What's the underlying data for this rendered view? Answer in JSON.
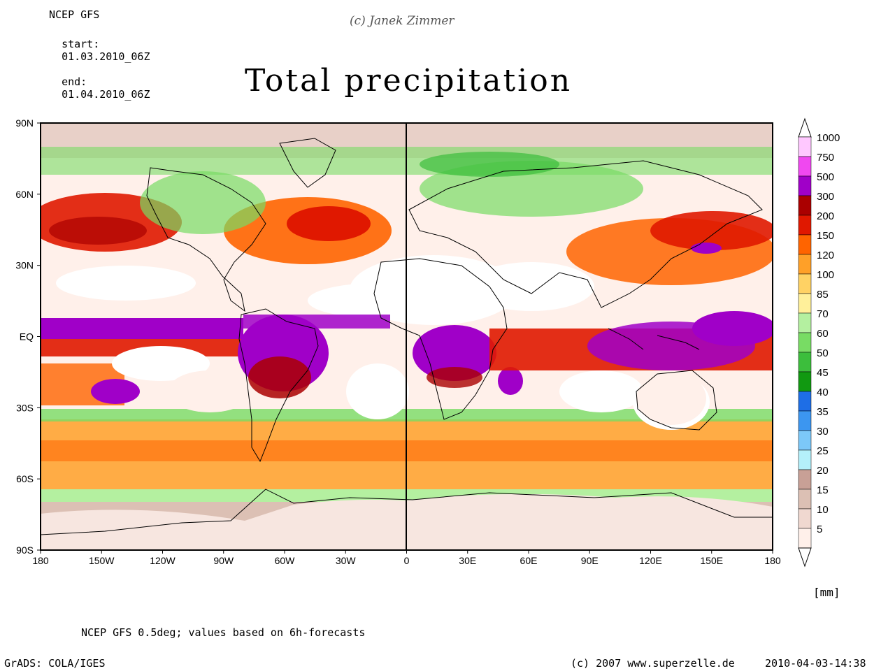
{
  "header": {
    "source": "NCEP GFS",
    "start_label": "start:",
    "start": "01.03.2010_06Z",
    "end_label": "end:",
    "end": "01.04.2010_06Z",
    "copyright_top": "(c) Janek Zimmer"
  },
  "title": "Total precipitation",
  "map": {
    "lat_labels": [
      "90N",
      "60N",
      "30N",
      "EQ",
      "30S",
      "60S",
      "90S"
    ],
    "lon_labels": [
      "180",
      "150W",
      "120W",
      "90W",
      "60W",
      "30W",
      "0",
      "30E",
      "60E",
      "90E",
      "120E",
      "150E",
      "180"
    ]
  },
  "legend": {
    "unit": "[mm]",
    "levels": [
      "1000",
      "750",
      "500",
      "300",
      "200",
      "150",
      "120",
      "100",
      "85",
      "70",
      "60",
      "50",
      "45",
      "40",
      "35",
      "30",
      "25",
      "20",
      "15",
      "10",
      "5"
    ],
    "colors": [
      "#ffc8ff",
      "#f048f0",
      "#a000c8",
      "#aa0000",
      "#e01800",
      "#ff6400",
      "#ffa028",
      "#ffd264",
      "#fff09a",
      "#b4f0a0",
      "#78dc64",
      "#3cbe3c",
      "#119911",
      "#1e6ee6",
      "#3c96f0",
      "#7cc8f8",
      "#b4f0fa",
      "#c8a096",
      "#dcc0b4",
      "#f0d8d0",
      "#fff0ea"
    ]
  },
  "footer": {
    "note": "NCEP GFS 0.5deg; values based on 6h-forecasts",
    "grads": "GrADS: COLA/IGES",
    "site": "(c) 2007 www.superzelle.de",
    "timestamp": "2010-04-03-14:38"
  }
}
